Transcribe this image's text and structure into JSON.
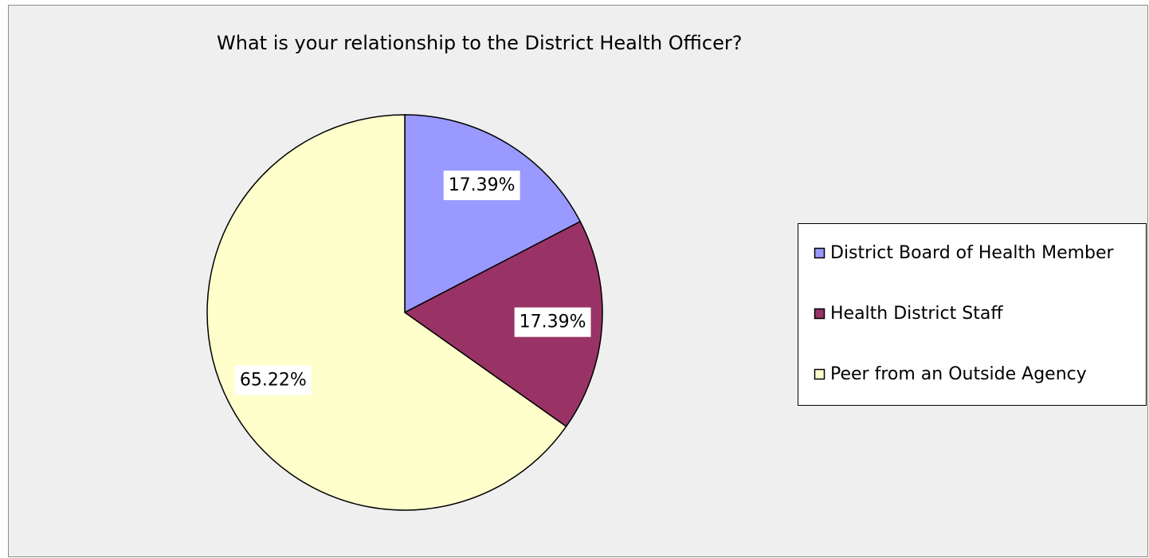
{
  "chart_data": {
    "type": "pie",
    "title": "What is your relationship to the District Health Officer?",
    "categories": [
      "District Board of Health Member",
      "Health District Staff",
      "Peer from an Outside Agency"
    ],
    "values": [
      17.39,
      17.39,
      65.22
    ],
    "value_labels": [
      "17.39%",
      "17.39%",
      "65.22%"
    ],
    "colors": [
      "#9999ff",
      "#993366",
      "#ffffcc"
    ],
    "legend": "right"
  }
}
